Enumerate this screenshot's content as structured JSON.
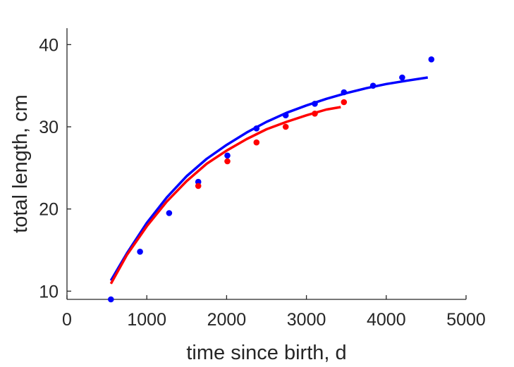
{
  "chart_data": {
    "type": "scatter",
    "title": "",
    "xlabel": "time since birth, d",
    "ylabel": "total length, cm",
    "xlim": [
      0,
      5000
    ],
    "ylim": [
      9,
      42
    ],
    "xticks": [
      0,
      1000,
      2000,
      3000,
      4000,
      5000
    ],
    "yticks": [
      10,
      20,
      30,
      40
    ],
    "grid": false,
    "legend": "none",
    "series": [
      {
        "kind": "points",
        "color": "#0000ff",
        "x": [
          550,
          915,
          1280,
          1645,
          2010,
          2375,
          2740,
          3105,
          3470,
          3835,
          4200,
          4565
        ],
        "y": [
          9.0,
          14.8,
          19.5,
          23.3,
          26.5,
          29.8,
          31.4,
          32.8,
          34.2,
          35.0,
          36.0,
          38.2
        ]
      },
      {
        "kind": "points",
        "color": "#ff0000",
        "x": [
          1645,
          2010,
          2375,
          2740,
          3105,
          3470
        ],
        "y": [
          22.8,
          25.8,
          28.1,
          30.0,
          31.6,
          33.0
        ]
      },
      {
        "kind": "line",
        "color": "#0000ff",
        "x": [
          550,
          750,
          1000,
          1250,
          1500,
          1750,
          2000,
          2250,
          2500,
          2750,
          3000,
          3250,
          3500,
          3750,
          4000,
          4250,
          4520
        ],
        "y": [
          11.3,
          14.6,
          18.3,
          21.4,
          24.0,
          26.1,
          27.8,
          29.3,
          30.6,
          31.7,
          32.6,
          33.4,
          34.1,
          34.7,
          35.2,
          35.6,
          36.0
        ]
      },
      {
        "kind": "line",
        "color": "#ff0000",
        "x": [
          550,
          750,
          1000,
          1250,
          1500,
          1750,
          2000,
          2250,
          2500,
          2750,
          3000,
          3250,
          3430
        ],
        "y": [
          10.9,
          14.4,
          17.9,
          20.9,
          23.4,
          25.5,
          27.1,
          28.5,
          29.7,
          30.6,
          31.4,
          32.1,
          32.4
        ]
      }
    ]
  }
}
